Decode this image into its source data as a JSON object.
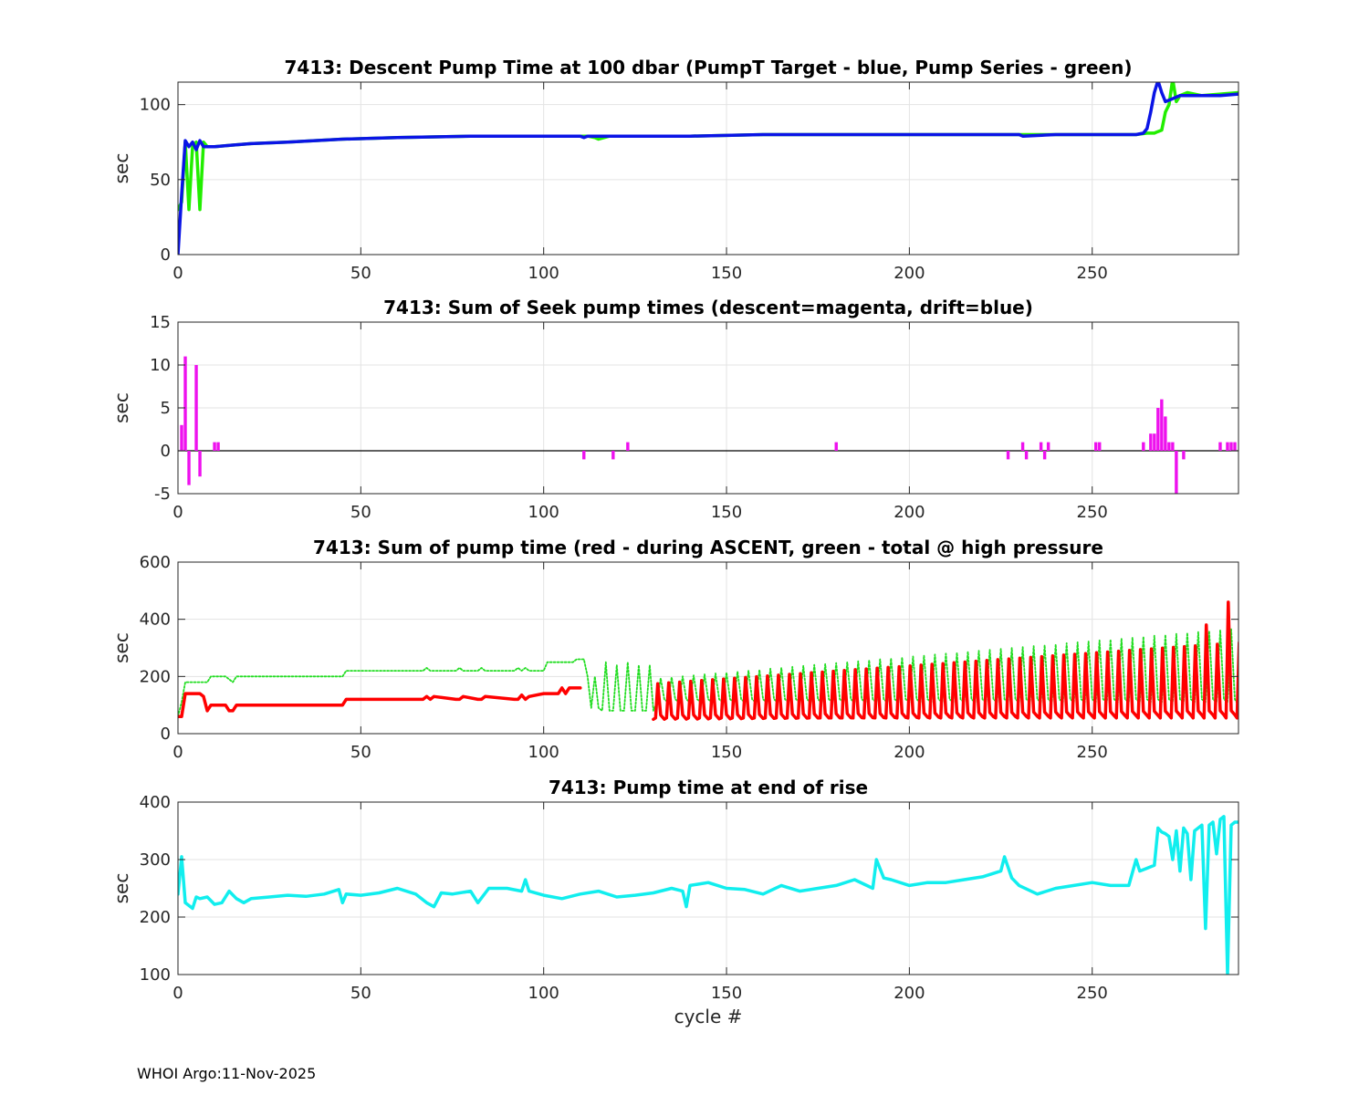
{
  "footer": "WHOI Argo:11-Nov-2025",
  "chart_data": [
    {
      "type": "line",
      "title": "7413: Descent Pump Time at 100 dbar (PumpT Target - blue, Pump Series - green)",
      "xlabel": "",
      "ylabel": "sec",
      "xlim": [
        0,
        290
      ],
      "ylim": [
        0,
        115
      ],
      "xticks": [
        0,
        50,
        100,
        150,
        200,
        250
      ],
      "yticks": [
        0,
        50,
        100
      ],
      "grid": true,
      "series": [
        {
          "name": "Pump Series",
          "color": "#22ee00",
          "style": "solid",
          "x": [
            0,
            1,
            2,
            3,
            4,
            5,
            6,
            7,
            8,
            10,
            15,
            20,
            30,
            45,
            60,
            80,
            100,
            112,
            114,
            115,
            118,
            125,
            140,
            160,
            180,
            200,
            220,
            240,
            255,
            262,
            265,
            267,
            268,
            269,
            270,
            271,
            272,
            273,
            274,
            276,
            280,
            290
          ],
          "y": [
            30,
            35,
            75,
            30,
            72,
            75,
            30,
            75,
            72,
            72,
            73,
            74,
            75,
            77,
            78,
            79,
            79,
            79,
            78,
            77,
            79,
            79,
            79,
            80,
            80,
            80,
            80,
            80,
            80,
            80,
            81,
            81,
            82,
            83,
            95,
            100,
            117,
            102,
            106,
            108,
            106,
            108
          ]
        },
        {
          "name": "PumpT Target",
          "color": "#0a14e6",
          "style": "solid",
          "x": [
            0,
            1,
            2,
            3,
            4,
            5,
            6,
            7,
            10,
            15,
            20,
            30,
            45,
            60,
            80,
            100,
            110,
            111,
            112,
            120,
            140,
            160,
            180,
            200,
            220,
            230,
            231,
            240,
            255,
            262,
            264,
            265,
            266,
            267,
            268,
            269,
            270,
            272,
            274,
            276,
            280,
            285,
            290
          ],
          "y": [
            0,
            40,
            76,
            72,
            75,
            70,
            76,
            72,
            72,
            73,
            74,
            75,
            77,
            78,
            79,
            79,
            79,
            78,
            79,
            79,
            79,
            80,
            80,
            80,
            80,
            80,
            79,
            80,
            80,
            80,
            81,
            84,
            95,
            108,
            116,
            108,
            102,
            104,
            106,
            106,
            106,
            106,
            107
          ]
        }
      ]
    },
    {
      "type": "bar",
      "title": "7413: Sum of Seek pump times (descent=magenta, drift=blue)",
      "xlabel": "",
      "ylabel": "sec",
      "xlim": [
        0,
        290
      ],
      "ylim": [
        -5,
        15
      ],
      "xticks": [
        0,
        50,
        100,
        150,
        200,
        250
      ],
      "yticks": [
        -5,
        0,
        5,
        10,
        15
      ],
      "grid": true,
      "color": "#ee11ee",
      "x": [
        1,
        2,
        3,
        5,
        6,
        10,
        11,
        111,
        119,
        123,
        180,
        227,
        231,
        232,
        236,
        237,
        238,
        251,
        252,
        264,
        266,
        267,
        268,
        269,
        270,
        271,
        272,
        273,
        275,
        285,
        287,
        288,
        289
      ],
      "values": [
        3,
        11,
        -4,
        10,
        -3,
        1,
        1,
        -1,
        -1,
        1,
        1,
        -1,
        1,
        -1,
        1,
        -1,
        1,
        1,
        1,
        1,
        2,
        2,
        5,
        6,
        4,
        1,
        1,
        -5,
        -1,
        1,
        1,
        1,
        1
      ]
    },
    {
      "type": "line",
      "title": "7413: Sum of pump time (red - during ASCENT, green - total @ high pressure",
      "xlabel": "",
      "ylabel": "sec",
      "xlim": [
        0,
        290
      ],
      "ylim": [
        0,
        600
      ],
      "xticks": [
        0,
        50,
        100,
        150,
        200,
        250
      ],
      "yticks": [
        0,
        200,
        400,
        600
      ],
      "grid": true,
      "series": [
        {
          "name": "total @ high pressure",
          "color": "#22dd22",
          "style": "dotted",
          "generator": "pump_total",
          "x": [
            0,
            1,
            2,
            8,
            9,
            13,
            15,
            16,
            45,
            46,
            67,
            68,
            69,
            70,
            76,
            77,
            78,
            82,
            83,
            84,
            92,
            93,
            94,
            95,
            96,
            97,
            100,
            101,
            108,
            109,
            110,
            111,
            112
          ],
          "y": [
            60,
            110,
            180,
            180,
            200,
            200,
            180,
            200,
            200,
            220,
            220,
            230,
            220,
            220,
            220,
            230,
            220,
            220,
            230,
            220,
            220,
            230,
            220,
            230,
            220,
            220,
            220,
            250,
            250,
            260,
            260,
            260,
            200
          ],
          "base": 80,
          "peak_start": 150,
          "peak_growth": 1.1,
          "peak_extra": [
            [
              280,
              420
            ],
            [
              286,
              500
            ],
            [
              288,
              480
            ]
          ]
        },
        {
          "name": "during ASCENT",
          "color": "#ff0000",
          "style": "solid",
          "generator": "pump_ascent",
          "x": [
            0,
            1,
            2,
            6,
            7,
            8,
            9,
            13,
            14,
            15,
            16,
            45,
            46,
            67,
            68,
            69,
            70,
            76,
            77,
            78,
            82,
            83,
            84,
            92,
            93,
            94,
            95,
            96,
            100,
            101,
            104,
            105,
            106,
            107,
            110
          ],
          "y": [
            60,
            60,
            140,
            140,
            130,
            80,
            100,
            100,
            80,
            80,
            100,
            100,
            120,
            120,
            130,
            120,
            130,
            120,
            120,
            130,
            120,
            120,
            130,
            120,
            120,
            135,
            120,
            130,
            140,
            140,
            140,
            160,
            140,
            160,
            160
          ],
          "start": 130,
          "base": 50,
          "peak_start": 130,
          "peak_growth": 0.9,
          "peak_extra": [
            [
              280,
              380
            ],
            [
              286,
              460
            ]
          ]
        }
      ]
    },
    {
      "type": "line",
      "title": "7413: Pump time at end of rise",
      "xlabel": "cycle #",
      "ylabel": "sec",
      "xlim": [
        0,
        290
      ],
      "ylim": [
        100,
        400
      ],
      "xticks": [
        0,
        50,
        100,
        150,
        200,
        250
      ],
      "yticks": [
        100,
        200,
        300,
        400
      ],
      "grid": true,
      "series": [
        {
          "name": "Pump time at end of rise",
          "color": "#11eeee",
          "style": "solid",
          "x": [
            0,
            1,
            2,
            3,
            4,
            5,
            6,
            8,
            10,
            12,
            14,
            16,
            18,
            20,
            25,
            30,
            35,
            40,
            44,
            45,
            46,
            50,
            55,
            60,
            65,
            68,
            70,
            72,
            75,
            80,
            82,
            85,
            90,
            94,
            95,
            96,
            100,
            105,
            110,
            115,
            120,
            125,
            130,
            135,
            138,
            139,
            140,
            145,
            150,
            155,
            160,
            165,
            170,
            175,
            180,
            185,
            190,
            191,
            193,
            195,
            200,
            205,
            210,
            215,
            220,
            225,
            226,
            228,
            230,
            235,
            240,
            245,
            250,
            255,
            260,
            262,
            263,
            265,
            267,
            268,
            269,
            270,
            271,
            272,
            273,
            274,
            275,
            276,
            277,
            278,
            279,
            280,
            281,
            282,
            283,
            284,
            285,
            286,
            287,
            288,
            289,
            290
          ],
          "y": [
            240,
            305,
            225,
            220,
            215,
            235,
            232,
            235,
            222,
            225,
            245,
            232,
            225,
            232,
            235,
            238,
            236,
            240,
            248,
            225,
            240,
            238,
            242,
            250,
            240,
            225,
            218,
            242,
            240,
            245,
            225,
            250,
            250,
            245,
            265,
            245,
            238,
            232,
            240,
            245,
            235,
            238,
            242,
            250,
            245,
            218,
            255,
            260,
            250,
            248,
            240,
            255,
            245,
            250,
            255,
            265,
            250,
            300,
            268,
            265,
            255,
            260,
            260,
            265,
            270,
            280,
            305,
            268,
            255,
            240,
            250,
            255,
            260,
            255,
            255,
            300,
            280,
            285,
            290,
            355,
            348,
            345,
            340,
            300,
            350,
            280,
            355,
            345,
            265,
            350,
            355,
            360,
            180,
            360,
            365,
            310,
            370,
            375,
            100,
            360,
            365,
            365
          ]
        }
      ]
    }
  ]
}
